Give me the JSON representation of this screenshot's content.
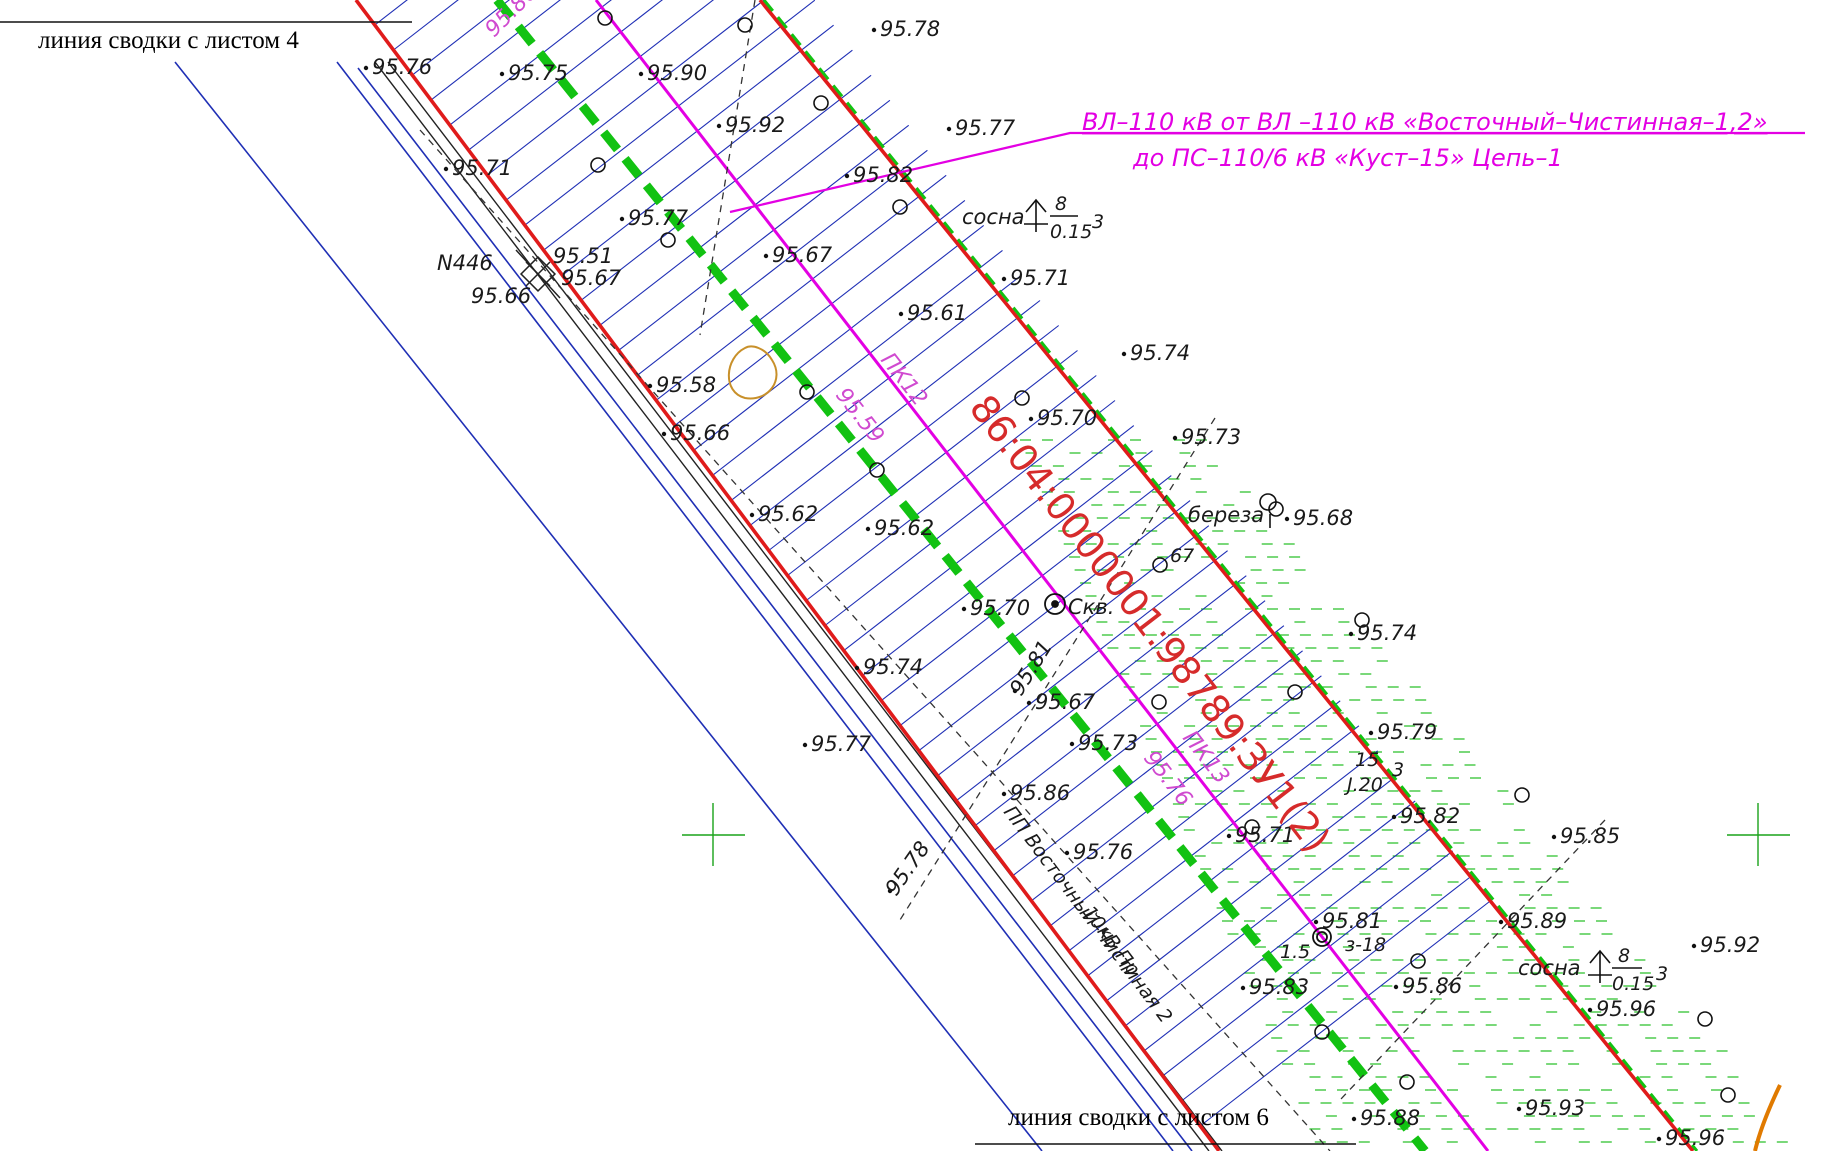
{
  "sheet_labels": {
    "top": "линия сводки с листом 4",
    "bottom": "линия сводки с листом 6"
  },
  "power_line": {
    "line1": "ВЛ–110 кВ от ВЛ –110 кВ «Восточный–Чистинная–1,2»",
    "line2": "до ПС–110/6 кВ «Куст–15» Цепь–1"
  },
  "cadastral_number": "86:04:0000001:98789:ЗУ1(2)",
  "pickets": [
    "ПК12",
    "ПК13"
  ],
  "pink_elevations": [
    "95.59",
    "95.76",
    "95.86"
  ],
  "road": {
    "name": "ПП Восточный–Чистиная 2",
    "voltage": "10кВ Пр"
  },
  "control_point": {
    "name": "N446",
    "elevations": [
      "95.66",
      "95.51",
      "95.67"
    ]
  },
  "trees": [
    {
      "type": "сосна",
      "height": "8",
      "diameter": "0.15",
      "count": "3"
    },
    {
      "type": "береза"
    },
    {
      "type": "сосна",
      "height": "8",
      "diameter": "0.15",
      "count": "3"
    }
  ],
  "well": "Скв.",
  "misc_labels": [
    "з-18",
    "1.5",
    "67",
    "Ј.20",
    "15",
    "3"
  ],
  "spot_heights": [
    "95.78",
    "95.76",
    "95.75",
    "95.90",
    "95.92",
    "95.77",
    "95.71",
    "95.82",
    "95.77",
    "95.67",
    "95.71",
    "95.61",
    "95.74",
    "95.58",
    "95.66",
    "95.70",
    "95.73",
    "95.62",
    "95.62",
    "95.68",
    "95.70",
    "95.74",
    "95.67",
    "95.81",
    "95.74",
    "95.79",
    "95.77",
    "95.73",
    "95.86",
    "95.71",
    "95.82",
    "95.85",
    "95.76",
    "95.78",
    "95.81",
    "95.89",
    "95.92",
    "95.83",
    "95.86",
    "95.96",
    "95.88",
    "95.93",
    "95.96"
  ],
  "colors": {
    "boundary_red": "#e01b1b",
    "power_magenta": "#e300e3",
    "row_green_dash": "#12c212",
    "hatch_blue": "#1f2fb5",
    "vegetation_green": "#33c433",
    "cadastral_text": "#d62b2b",
    "grid_cross": "#1aa31a",
    "contour_brown": "#c8902a"
  }
}
